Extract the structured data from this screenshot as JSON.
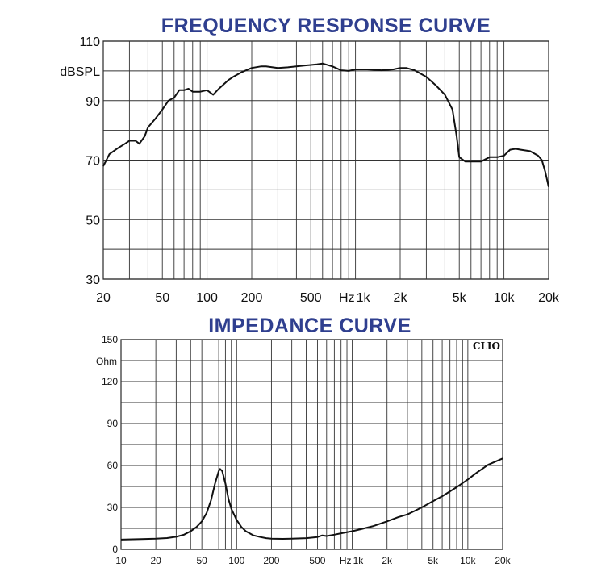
{
  "chart_data": [
    {
      "type": "line",
      "title": "FREQUENCY RESPONSE CURVE",
      "ylabel": "dBSPL",
      "xlabel": "",
      "xscale": "log",
      "xlim": [
        20,
        20000
      ],
      "ylim": [
        30,
        110
      ],
      "grid": true,
      "x_tick_labels": [
        "20",
        "50",
        "100",
        "200",
        "500",
        "Hz",
        "1k",
        "2k",
        "5k",
        "10k",
        "20k"
      ],
      "y_tick_labels": [
        "110",
        "90",
        "70",
        "50",
        "30"
      ],
      "series": [
        {
          "x": [
            20,
            22,
            25,
            28,
            30,
            33,
            35,
            38,
            40,
            45,
            50,
            55,
            60,
            65,
            70,
            75,
            80,
            90,
            100,
            110,
            120,
            140,
            150,
            170,
            200,
            230,
            250,
            300,
            350,
            400,
            450,
            500,
            550,
            600,
            700,
            800,
            900,
            1000,
            1200,
            1500,
            1800,
            2000,
            2200,
            2500,
            3000,
            3500,
            4000,
            4500,
            4800,
            5000,
            5500,
            6000,
            7000,
            8000,
            9000,
            10000,
            11000,
            12000,
            13000,
            15000,
            17000,
            18000,
            19000,
            20000
          ],
          "y": [
            68,
            72,
            74,
            75.5,
            76.5,
            76.5,
            75.5,
            78,
            81,
            84,
            87,
            90,
            91,
            93.5,
            93.5,
            94,
            93,
            93,
            93.5,
            92,
            94,
            97,
            98,
            99.5,
            101,
            101.5,
            101.5,
            101,
            101.2,
            101.5,
            101.8,
            102,
            102.2,
            102.5,
            101.5,
            100.2,
            100,
            100.5,
            100.5,
            100.2,
            100.5,
            101,
            101,
            100.2,
            98,
            95,
            92,
            87,
            78,
            71,
            69.5,
            69.5,
            69.5,
            71,
            71,
            71.5,
            73.5,
            73.8,
            73.5,
            73,
            71.5,
            70,
            66,
            61
          ]
        }
      ]
    },
    {
      "type": "line",
      "title": "IMPEDANCE CURVE",
      "ylabel": "Ohm",
      "xlabel": "",
      "xscale": "log",
      "xlim": [
        10,
        20000
      ],
      "ylim": [
        0,
        150
      ],
      "grid": true,
      "x_tick_labels": [
        "10",
        "20",
        "50",
        "100",
        "200",
        "500",
        "Hz",
        "1k",
        "2k",
        "5k",
        "10k",
        "20k"
      ],
      "y_tick_labels": [
        "150",
        "120",
        "90",
        "60",
        "30",
        "0"
      ],
      "series": [
        {
          "x": [
            10,
            15,
            20,
            25,
            30,
            35,
            40,
            45,
            50,
            55,
            60,
            65,
            70,
            72,
            75,
            80,
            85,
            90,
            100,
            110,
            120,
            140,
            160,
            180,
            200,
            250,
            300,
            400,
            500,
            550,
            600,
            700,
            800,
            1000,
            1200,
            1500,
            2000,
            2500,
            3000,
            4000,
            5000,
            6000,
            7000,
            8000,
            10000,
            12000,
            15000,
            20000
          ],
          "y": [
            7,
            7.3,
            7.6,
            8.1,
            9,
            10.5,
            13,
            16,
            20,
            26,
            35,
            47,
            56,
            57.5,
            56,
            47,
            36,
            29,
            21,
            16,
            13,
            10,
            8.8,
            8,
            7.6,
            7.5,
            7.6,
            8,
            8.8,
            10,
            9.5,
            10.5,
            11.5,
            13,
            14.5,
            16.5,
            20,
            23,
            25,
            30,
            34.5,
            38,
            41.5,
            44.5,
            50,
            55,
            60.5,
            65
          ]
        }
      ]
    },
    {
      "brand_label": "CLIO"
    }
  ]
}
